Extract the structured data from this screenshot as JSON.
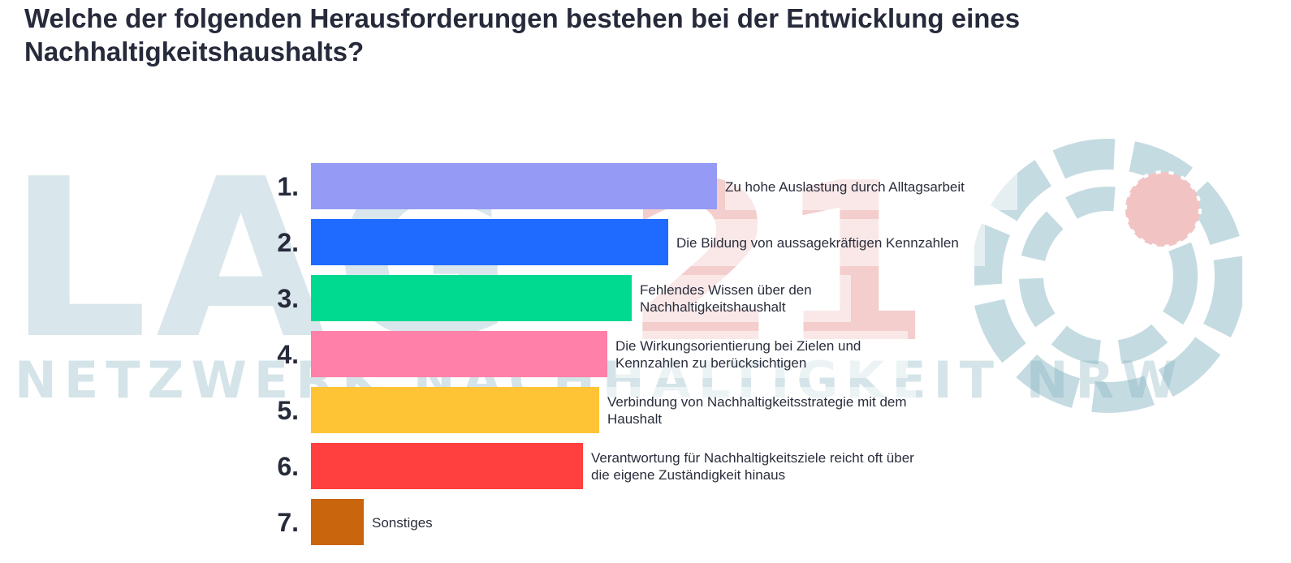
{
  "title": "Welche der folgenden Herausforderungen bestehen bei der Entwicklung eines Nachhaltigkeitshaushalts?",
  "watermark": {
    "logo_text": "LAG21",
    "subtitle": "NETZWERK NACHHALTIGKEIT NRW",
    "globe_icon": "globe-logo-icon"
  },
  "chart_data": {
    "type": "bar",
    "orientation": "horizontal",
    "title": "Welche der folgenden Herausforderungen bestehen bei der Entwicklung eines Nachhaltigkeitshaushalts?",
    "ranks": [
      "1.",
      "2.",
      "3.",
      "4.",
      "5.",
      "6.",
      "7."
    ],
    "categories": [
      "Zu hohe Auslastung durch Alltagsarbeit",
      "Die Bildung von aussagekräftigen Kennzahlen",
      "Fehlendes Wissen über den Nachhaltigkeitshaushalt",
      "Die Wirkungsorientierung bei Zielen und Kennzahlen zu berücksichtigen",
      "Verbindung von Nachhaltigkeitsstrategie mit dem Haushalt",
      "Verantwortung für Nachhaltigkeitsziele reicht oft über die eigene Zuständigkeit hinaus",
      "Sonstiges"
    ],
    "values": [
      100,
      88,
      79,
      73,
      71,
      67,
      13
    ],
    "xlim": [
      0,
      100
    ],
    "colors": [
      "#959bf5",
      "#1f6bff",
      "#00d990",
      "#ff80a8",
      "#ffc436",
      "#ff403f",
      "#c9650c"
    ],
    "grid": false,
    "legend": "none"
  }
}
